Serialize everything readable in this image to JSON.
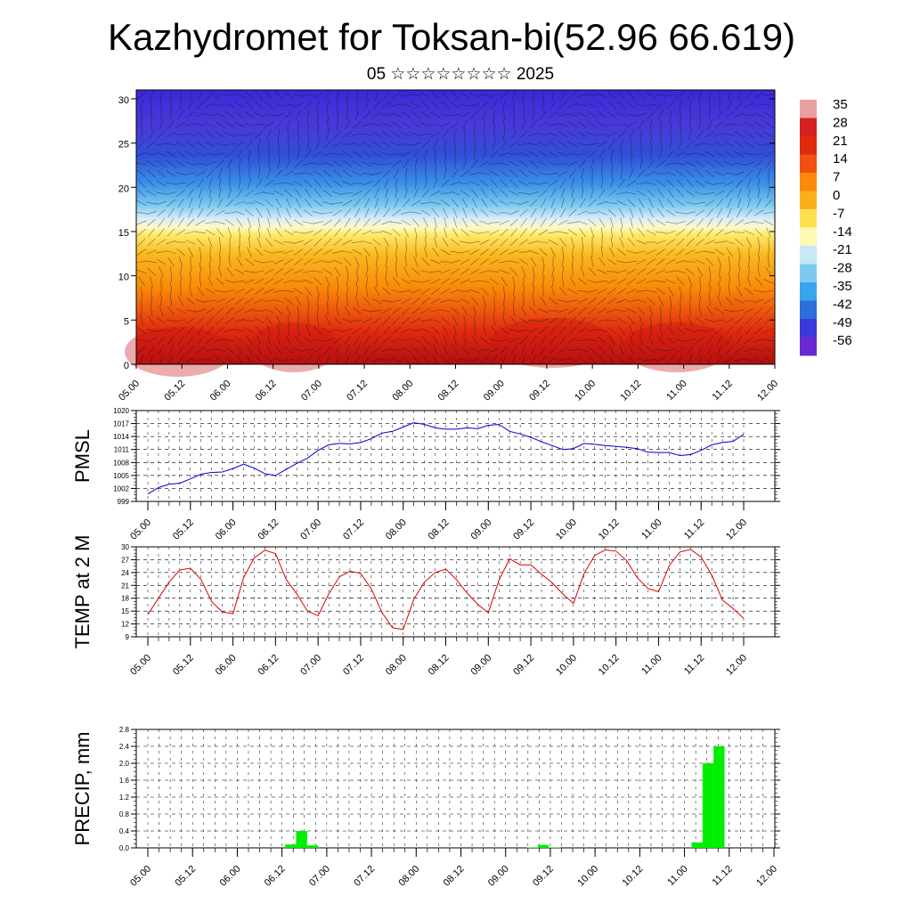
{
  "title": "Kazhydromet for Toksan-bi(52.96 66.619)",
  "subtitle": "05 ☆☆☆☆☆☆☆☆ 2025",
  "chart_data": [
    {
      "type": "heatmap",
      "title": "Kazhydromet for Toksan-bi(52.96 66.619)",
      "y_ticks": [
        "0",
        "5",
        "10",
        "15",
        "20",
        "25",
        "30"
      ],
      "ylim": [
        0,
        31
      ],
      "x_ticks": [
        "05.00",
        "05.12",
        "06.00",
        "06.12",
        "07.00",
        "07.12",
        "08.00",
        "08.12",
        "09.00",
        "09.12",
        "10.00",
        "10.12",
        "11.00",
        "11.12",
        "12.00"
      ],
      "colorbar_labels": [
        "35",
        "28",
        "21",
        "14",
        "7",
        "0",
        "-7",
        "-14",
        "-21",
        "-28",
        "-35",
        "-42",
        "-49",
        "-56"
      ],
      "colorbar_colors": [
        "#e8a0a0",
        "#d42020",
        "#e02a10",
        "#f05010",
        "#fa8a0a",
        "#fbb01a",
        "#fde050",
        "#fff8b0",
        "#c8e8f6",
        "#7ccaf0",
        "#3aa4ec",
        "#2a70d8",
        "#3a3ad8",
        "#6a2ad0"
      ],
      "description_values": {
        "surface_level_temp_range": "14 to 28",
        "top_level_temp_range": "-49 to -56"
      },
      "wind_barbs": "present"
    },
    {
      "type": "line",
      "ylabel": "PMSL",
      "ylim": [
        999,
        1020
      ],
      "y_ticks": [
        "999",
        "1002",
        "1005",
        "1008",
        "1011",
        "1014",
        "1017",
        "1020"
      ],
      "x_ticks": [
        "05.00",
        "05.12",
        "06.00",
        "06.12",
        "07.00",
        "07.12",
        "08.00",
        "08.12",
        "09.00",
        "09.12",
        "10.00",
        "10.12",
        "11.00",
        "11.12",
        "12.00"
      ],
      "color": "#0000cc",
      "values": [
        1000.7,
        1002.2,
        1003.0,
        1003.2,
        1004.2,
        1005.3,
        1005.7,
        1005.8,
        1006.6,
        1007.6,
        1006.7,
        1005.4,
        1005.0,
        1006.4,
        1007.8,
        1009.0,
        1010.8,
        1012.1,
        1012.4,
        1012.3,
        1012.6,
        1013.5,
        1014.8,
        1015.2,
        1016.2,
        1017.2,
        1016.8,
        1016.0,
        1015.7,
        1015.7,
        1016.0,
        1015.8,
        1016.6,
        1016.8,
        1015.2,
        1014.6,
        1013.8,
        1012.8,
        1011.9,
        1011.0,
        1011.2,
        1012.4,
        1012.2,
        1011.9,
        1011.7,
        1011.5,
        1011.2,
        1010.4,
        1010.3,
        1010.3,
        1009.6,
        1009.8,
        1010.8,
        1012.1,
        1012.6,
        1012.9,
        1014.5
      ]
    },
    {
      "type": "line",
      "ylabel": "TEMP at 2 M",
      "ylim": [
        9,
        30
      ],
      "y_ticks": [
        "9",
        "12",
        "15",
        "18",
        "21",
        "24",
        "27",
        "30"
      ],
      "x_ticks": [
        "05.00",
        "05.12",
        "06.00",
        "06.12",
        "07.00",
        "07.12",
        "08.00",
        "08.12",
        "09.00",
        "09.12",
        "10.00",
        "10.12",
        "11.00",
        "11.12",
        "12.00"
      ],
      "color": "#dd0000",
      "values": [
        14.2,
        18.0,
        21.8,
        24.6,
        25.0,
        22.4,
        17.2,
        14.8,
        14.4,
        22.8,
        27.4,
        29.2,
        28.4,
        22.4,
        19.0,
        15.0,
        13.9,
        19.0,
        23.0,
        24.3,
        23.8,
        20.2,
        14.7,
        11.1,
        10.7,
        17.8,
        21.8,
        24.0,
        24.8,
        22.4,
        19.2,
        16.6,
        14.6,
        22.2,
        27.2,
        25.8,
        25.8,
        23.6,
        21.6,
        19.0,
        16.8,
        23.8,
        28.0,
        29.3,
        29.0,
        26.8,
        22.8,
        20.3,
        19.5,
        25.6,
        28.8,
        29.4,
        27.6,
        23.4,
        17.6,
        15.6,
        13.3
      ]
    },
    {
      "type": "bar",
      "ylabel": "PRECIP, mm",
      "ylim": [
        0,
        2.8
      ],
      "y_ticks": [
        "0.0",
        "0.4",
        "0.8",
        "1.2",
        "1.6",
        "2.0",
        "2.4",
        "2.8"
      ],
      "x_ticks": [
        "05.00",
        "05.12",
        "06.00",
        "06.12",
        "07.00",
        "07.12",
        "08.00",
        "08.12",
        "09.00",
        "09.12",
        "10.00",
        "10.12",
        "11.00",
        "11.12",
        "12.00"
      ],
      "color": "#00ee00",
      "values": [
        0,
        0,
        0,
        0,
        0,
        0,
        0,
        0,
        0,
        0,
        0,
        0,
        0,
        0.08,
        0.4,
        0.06,
        0,
        0,
        0,
        0,
        0,
        0,
        0,
        0,
        0,
        0,
        0,
        0,
        0,
        0,
        0,
        0,
        0,
        0,
        0,
        0.01,
        0.07,
        0.01,
        0,
        0,
        0,
        0,
        0,
        0,
        0,
        0,
        0,
        0,
        0,
        0,
        0.13,
        2.0,
        2.4,
        0,
        0,
        0,
        0,
        0
      ]
    }
  ]
}
